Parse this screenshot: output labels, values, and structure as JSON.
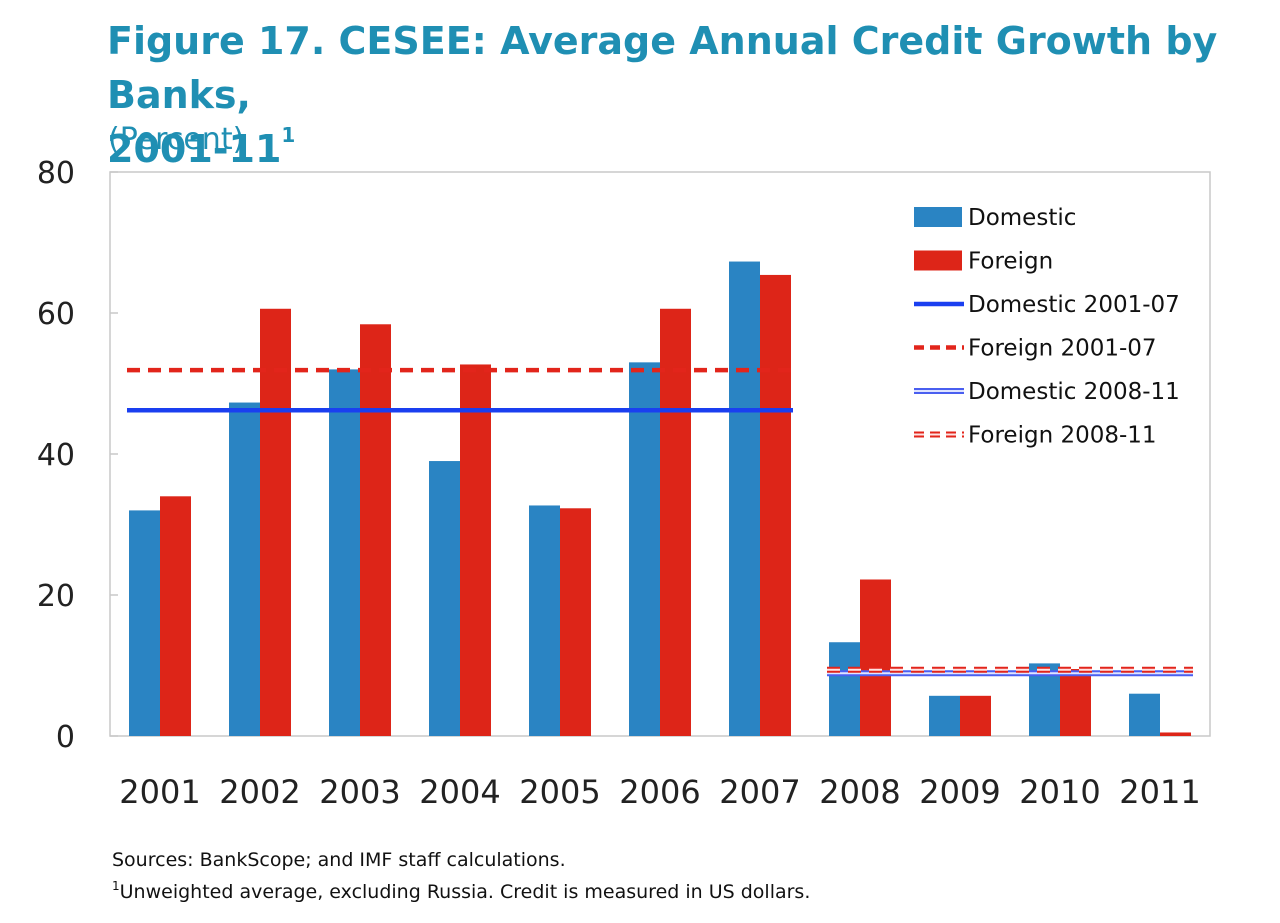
{
  "header": {
    "title": "Figure 17. CESEE: Average Annual Credit Growth by Banks,",
    "title_line2": "2001-11",
    "title_footnote_marker": "1",
    "subtitle": "(Percent)"
  },
  "notes": {
    "sources": "Sources: BankScope; and IMF staff calculations.",
    "footnote_marker": "1",
    "footnote": "Unweighted average, excluding Russia. Credit is measured in US dollars."
  },
  "chart_data": {
    "type": "bar",
    "categories": [
      "2001",
      "2002",
      "2003",
      "2004",
      "2005",
      "2006",
      "2007",
      "2008",
      "2009",
      "2010",
      "2011"
    ],
    "series": [
      {
        "name": "Domestic",
        "values": [
          32,
          47.3,
          52,
          39,
          32.7,
          53,
          67.3,
          13.3,
          5.7,
          10.3,
          6
        ],
        "color": "#2a84c3"
      },
      {
        "name": "Foreign",
        "values": [
          34,
          60.6,
          58.4,
          52.7,
          32.3,
          60.6,
          65.4,
          22.2,
          5.7,
          9.5,
          0.5
        ],
        "color": "#dd2518"
      }
    ],
    "averages": [
      {
        "name": "Domestic 2001-07",
        "value": 46.2,
        "from": "2001",
        "to": "2007",
        "color": "#1a3ff0",
        "style": "solid"
      },
      {
        "name": "Foreign 2001-07",
        "value": 51.9,
        "from": "2001",
        "to": "2007",
        "color": "#e2251b",
        "style": "dashed"
      },
      {
        "name": "Domestic 2008-11",
        "value": 8.9,
        "from": "2008",
        "to": "2011",
        "color": "#4a5ff0",
        "style": "double"
      },
      {
        "name": "Foreign 2008-11",
        "value": 9.4,
        "from": "2008",
        "to": "2011",
        "color": "#e2251b",
        "style": "double-dashed"
      }
    ],
    "legend": [
      "Domestic",
      "Foreign",
      "Domestic 2001-07",
      "Foreign 2001-07",
      "Domestic 2008-11",
      "Foreign 2008-11"
    ],
    "yticks": [
      "0",
      "20",
      "40",
      "60",
      "80"
    ],
    "ylim": [
      0,
      80
    ],
    "grid": false,
    "legend_position": "top-right"
  }
}
